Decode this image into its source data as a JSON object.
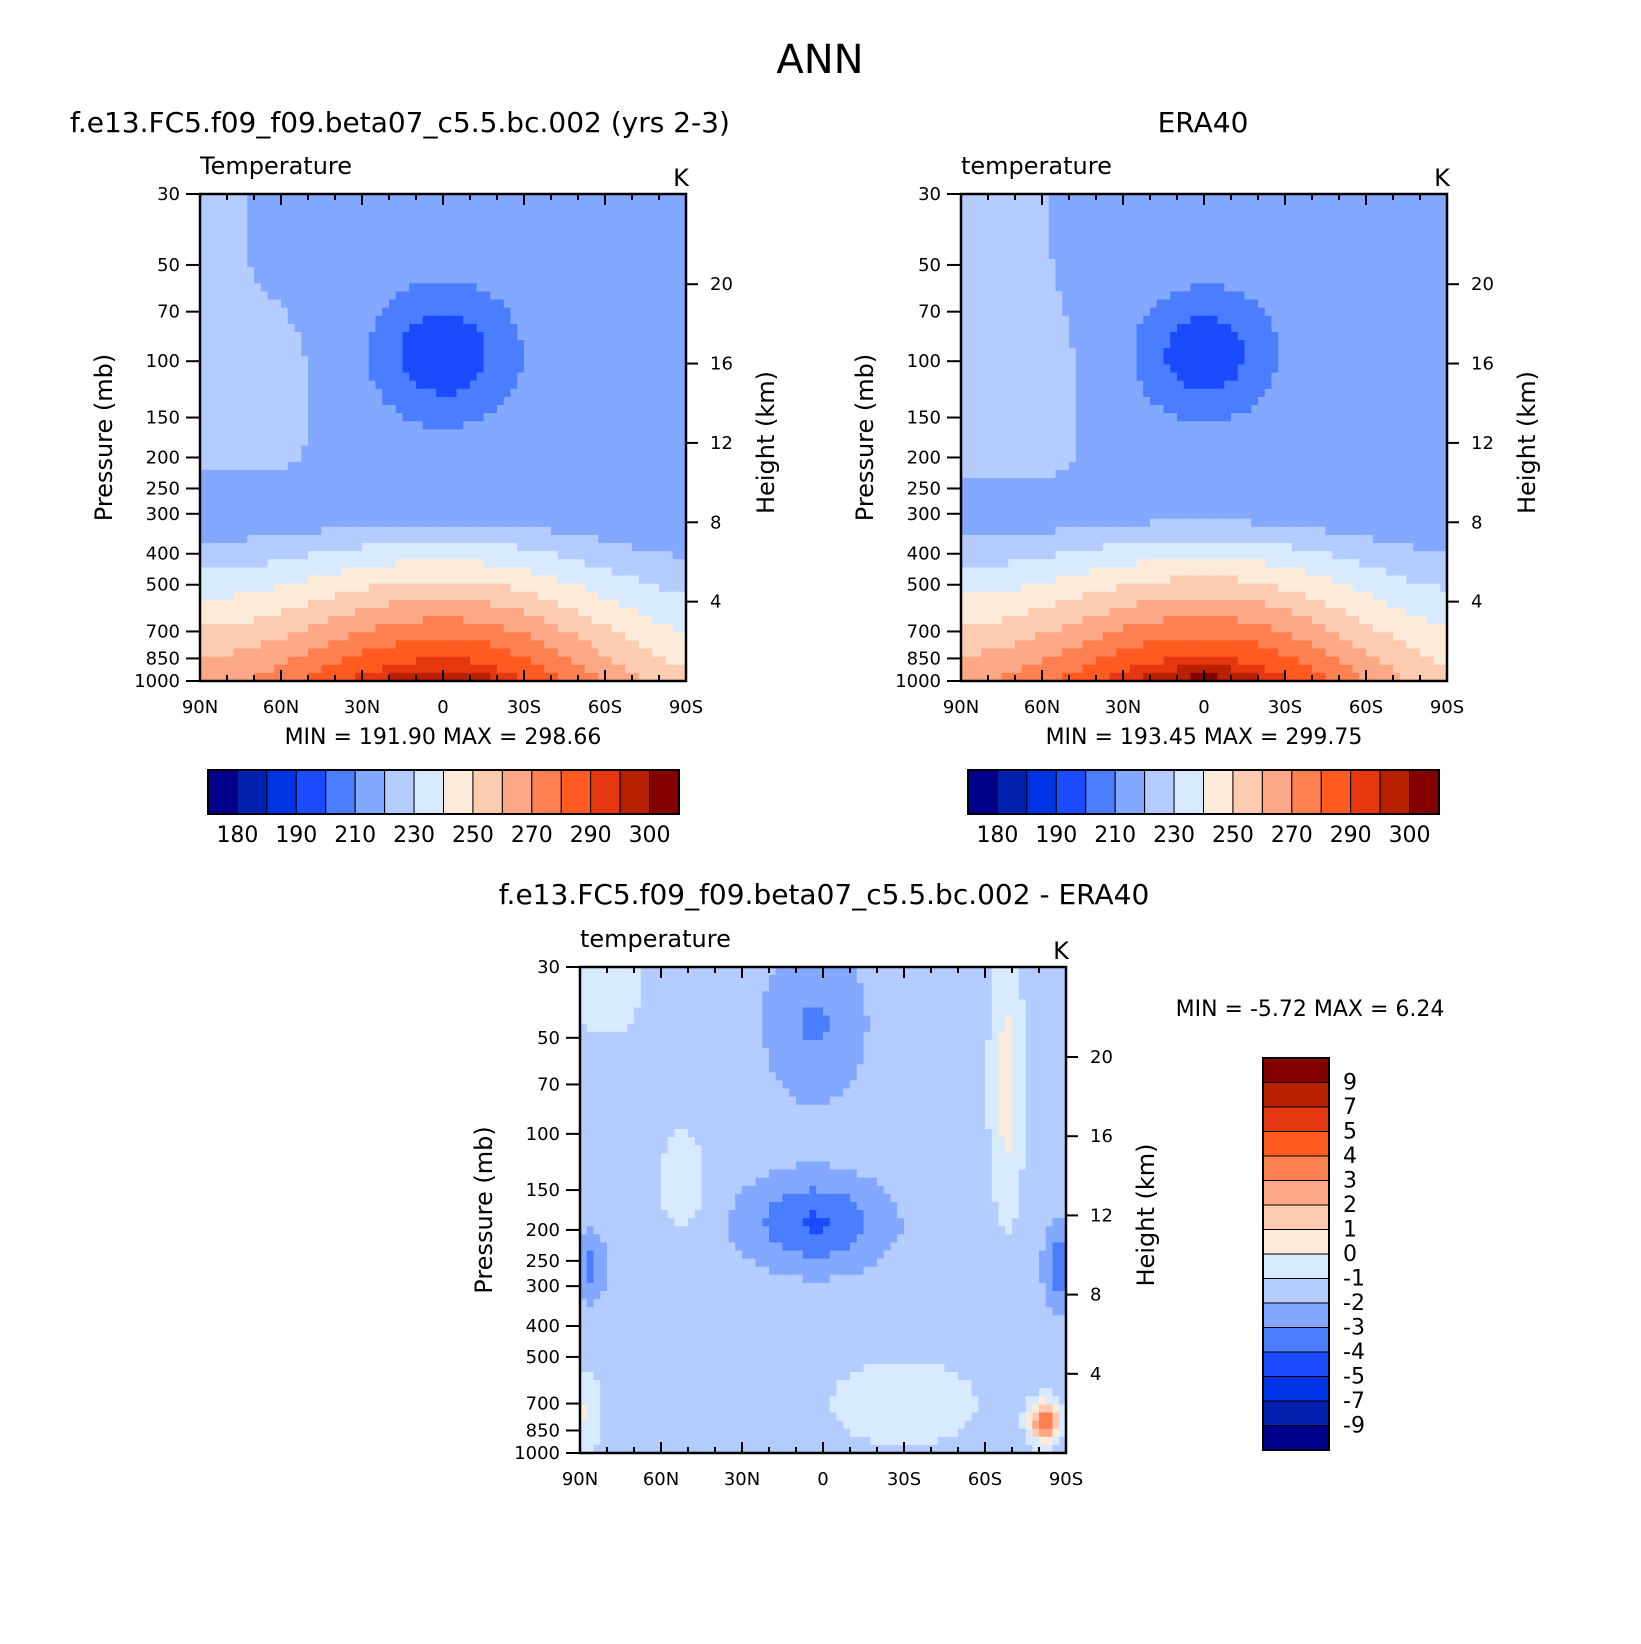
{
  "page_title": "ANN",
  "chart_data": [
    {
      "id": "model",
      "type": "heatmap",
      "panel_title": "f.e13.FC5.f09_f09.beta07_c5.5.bc.002 (yrs 2-3)",
      "variable": "Temperature",
      "units": "K",
      "ylabel": "Pressure (mb)",
      "y2label": "Height (km)",
      "x_tick_labels": [
        "90N",
        "60N",
        "30N",
        "0",
        "30S",
        "60S",
        "90S"
      ],
      "x_tick_values": [
        90,
        60,
        30,
        0,
        -30,
        -60,
        -90
      ],
      "xlim": [
        90,
        -90
      ],
      "pressure_ticks": [
        30,
        50,
        70,
        100,
        150,
        200,
        250,
        300,
        400,
        500,
        700,
        850,
        1000
      ],
      "height_ticks": [
        4,
        8,
        12,
        16,
        20
      ],
      "ylim": [
        30,
        1000
      ],
      "stats": "MIN = 191.90   MAX = 298.66",
      "min": 191.9,
      "max": 298.66,
      "contour_levels": [
        180,
        185,
        190,
        200,
        210,
        220,
        230,
        240,
        250,
        260,
        270,
        280,
        290,
        295,
        300
      ],
      "colorbar_labels": [
        "180",
        "190",
        "210",
        "230",
        "250",
        "270",
        "290",
        "300"
      ]
    },
    {
      "id": "obs",
      "type": "heatmap",
      "panel_title": "ERA40",
      "variable": "temperature",
      "units": "K",
      "ylabel": "Pressure (mb)",
      "y2label": "Height (km)",
      "x_tick_labels": [
        "90N",
        "60N",
        "30N",
        "0",
        "30S",
        "60S",
        "90S"
      ],
      "x_tick_values": [
        90,
        60,
        30,
        0,
        -30,
        -60,
        -90
      ],
      "xlim": [
        90,
        -90
      ],
      "pressure_ticks": [
        30,
        50,
        70,
        100,
        150,
        200,
        250,
        300,
        400,
        500,
        700,
        850,
        1000
      ],
      "height_ticks": [
        4,
        8,
        12,
        16,
        20
      ],
      "ylim": [
        30,
        1000
      ],
      "stats": "MIN = 193.45   MAX = 299.75",
      "min": 193.45,
      "max": 299.75,
      "contour_levels": [
        180,
        185,
        190,
        200,
        210,
        220,
        230,
        240,
        250,
        260,
        270,
        280,
        290,
        295,
        300
      ],
      "colorbar_labels": [
        "180",
        "190",
        "210",
        "230",
        "250",
        "270",
        "290",
        "300"
      ]
    },
    {
      "id": "diff",
      "type": "heatmap",
      "panel_title": "f.e13.FC5.f09_f09.beta07_c5.5.bc.002 - ERA40",
      "variable": "temperature",
      "units": "K",
      "ylabel": "Pressure (mb)",
      "y2label": "Height (km)",
      "x_tick_labels": [
        "90N",
        "60N",
        "30N",
        "0",
        "30S",
        "60S",
        "90S"
      ],
      "x_tick_values": [
        90,
        60,
        30,
        0,
        -30,
        -60,
        -90
      ],
      "xlim": [
        90,
        -90
      ],
      "pressure_ticks": [
        30,
        50,
        70,
        100,
        150,
        200,
        250,
        300,
        400,
        500,
        700,
        850,
        1000
      ],
      "height_ticks": [
        4,
        8,
        12,
        16,
        20
      ],
      "ylim": [
        30,
        1000
      ],
      "stats": "MIN =   -5.72   MAX =    6.24",
      "min": -5.72,
      "max": 6.24,
      "contour_levels": [
        -9,
        -7,
        -5,
        -4,
        -3,
        -2,
        -1,
        0,
        1,
        2,
        3,
        4,
        5,
        7,
        9
      ],
      "colorbar_labels": [
        "9",
        "7",
        "5",
        "4",
        "3",
        "2",
        "1",
        "0",
        "-1",
        "-2",
        "-3",
        "-4",
        "-5",
        "-7",
        "-9"
      ]
    }
  ],
  "colors": {
    "blue_red_16": [
      "#00008a",
      "#0020b0",
      "#0032e6",
      "#1a4bff",
      "#4b7dff",
      "#82a8ff",
      "#b4ccff",
      "#d8eaff",
      "#fdebd9",
      "#fdcbb0",
      "#fca886",
      "#fc8050",
      "#ff5a1f",
      "#e63810",
      "#b82000",
      "#840000"
    ],
    "axis": "#000000",
    "background": "#ffffff"
  }
}
